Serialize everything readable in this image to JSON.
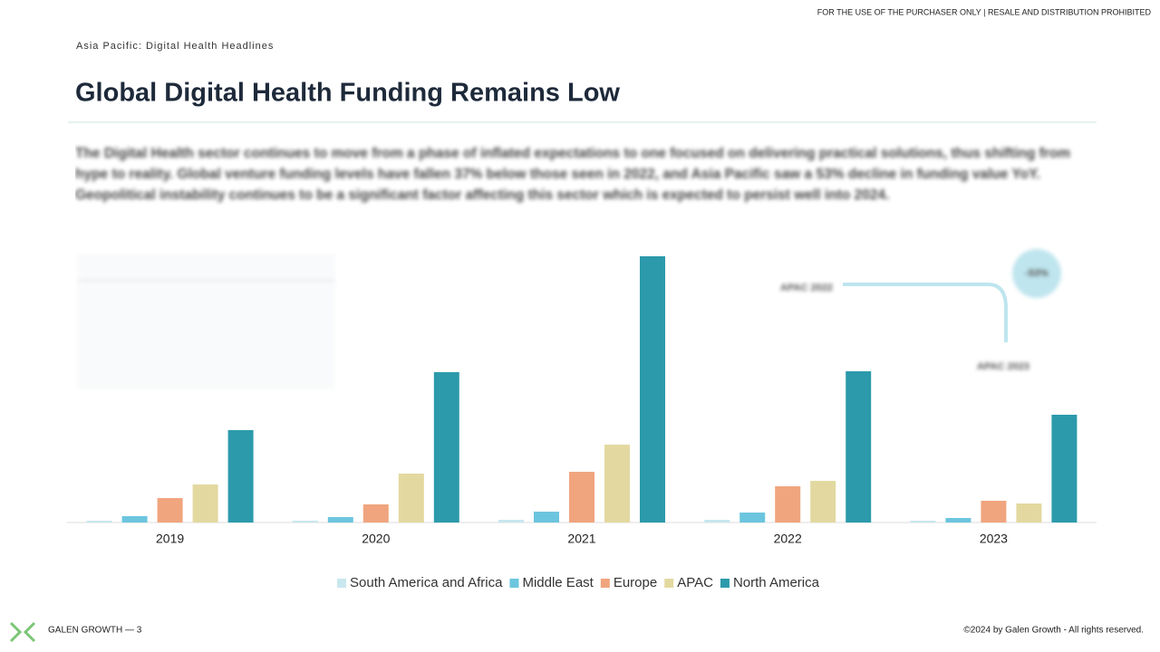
{
  "notice": "FOR THE USE OF THE PURCHASER ONLY | RESALE AND DISTRIBUTION PROHIBITED",
  "section": "Asia Pacific: Digital Health Headlines",
  "heading": "Global Digital Health Funding Remains Low",
  "body": "The Digital Health sector continues to move from a phase of inflated expectations to one focused on delivering practical solutions, thus shifting from hype to reality. Global venture funding levels have fallen 37% below those seen in 2022, and Asia Pacific saw a 53% decline in funding value YoY. Geopolitical instability continues to be a significant factor affecting this sector which is expected to persist well into 2024.",
  "footer_left": "GALEN GROWTH — 3",
  "footer_right": "©2024 by Galen Growth  - All rights reserved.",
  "chart_data": {
    "type": "bar",
    "categories": [
      "2019",
      "2020",
      "2021",
      "2022",
      "2023"
    ],
    "ylim": [
      0,
      30
    ],
    "series": [
      {
        "name": "South America and Africa",
        "color": "#c8e7ef",
        "values": [
          0.2,
          0.2,
          0.3,
          0.3,
          0.2
        ]
      },
      {
        "name": "Middle East",
        "color": "#6cc5de",
        "values": [
          0.7,
          0.6,
          1.2,
          1.1,
          0.5
        ]
      },
      {
        "name": "Europe",
        "color": "#f0a57e",
        "values": [
          2.7,
          2.0,
          5.6,
          4.0,
          2.4
        ]
      },
      {
        "name": "APAC",
        "color": "#e3d9a0",
        "values": [
          4.2,
          5.4,
          8.6,
          4.6,
          2.1
        ]
      },
      {
        "name": "North America",
        "color": "#2c9aab",
        "values": [
          10.2,
          16.6,
          29.4,
          16.7,
          11.9
        ]
      }
    ],
    "annotations": [
      "APAC 2022",
      "APAC 2023",
      "-53%"
    ]
  }
}
